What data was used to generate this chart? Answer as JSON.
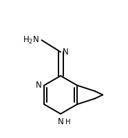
{
  "background_color": "#ffffff",
  "line_color": "#000000",
  "line_width": 1.4,
  "font_size": 8.5,
  "figsize": [
    1.86,
    2.0
  ],
  "dpi": 100,
  "xlim": [
    0,
    186
  ],
  "ylim": [
    0,
    200
  ]
}
